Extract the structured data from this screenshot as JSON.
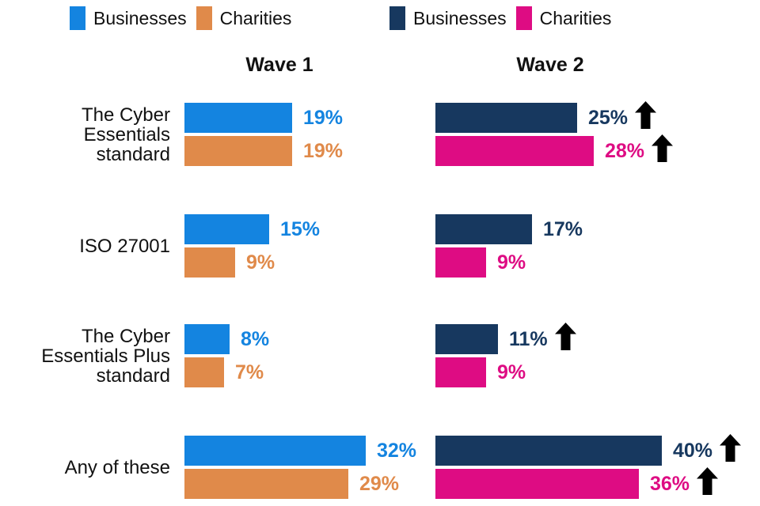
{
  "chart_data": {
    "type": "bar",
    "orientation": "horizontal",
    "unit": "%",
    "grid": false,
    "legend_position": "top",
    "xlim": [
      0,
      45
    ],
    "categories": [
      "The Cyber Essentials standard",
      "ISO 27001",
      "The Cyber Essentials Plus standard",
      "Any of these"
    ],
    "increase_marker_color": "#000000",
    "panels": [
      {
        "name": "Wave 1",
        "series": [
          {
            "name": "Businesses",
            "color": "#1484E0",
            "values": [
              19,
              15,
              8,
              32
            ],
            "labels": [
              "19%",
              "15%",
              "8%",
              "32%"
            ],
            "increase_marker": [
              false,
              false,
              false,
              false
            ]
          },
          {
            "name": "Charities",
            "color": "#E08A4A",
            "values": [
              19,
              9,
              7,
              29
            ],
            "labels": [
              "19%",
              "9%",
              "7%",
              "29%"
            ],
            "increase_marker": [
              false,
              false,
              false,
              false
            ]
          }
        ]
      },
      {
        "name": "Wave 2",
        "series": [
          {
            "name": "Businesses",
            "color": "#17385F",
            "values": [
              25,
              17,
              11,
              40
            ],
            "labels": [
              "25%",
              "17%",
              "11%",
              "40%"
            ],
            "increase_marker": [
              true,
              false,
              true,
              true
            ]
          },
          {
            "name": "Charities",
            "color": "#DE0C83",
            "values": [
              28,
              9,
              9,
              36
            ],
            "labels": [
              "28%",
              "9%",
              "9%",
              "36%"
            ],
            "increase_marker": [
              true,
              false,
              false,
              true
            ]
          }
        ]
      }
    ]
  }
}
